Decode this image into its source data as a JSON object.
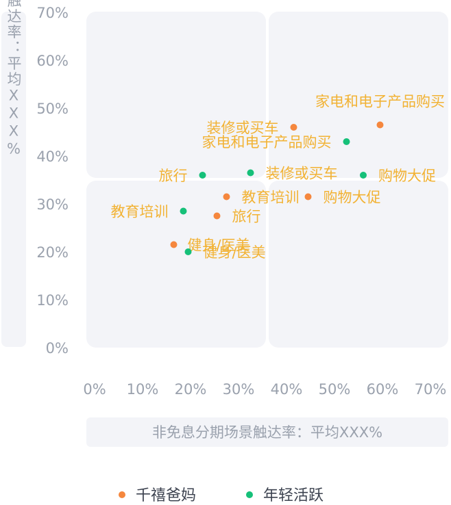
{
  "chart_data": {
    "type": "scatter",
    "xlabel": "非免息分期场景触达率：平均XXX%",
    "ylabel": "非免息借贷场景触达率：平均XXX%",
    "xlim": [
      0,
      70
    ],
    "ylim": [
      0,
      70
    ],
    "x_ticks": [
      "0%",
      "10%",
      "20%",
      "30%",
      "40%",
      "50%",
      "60%",
      "70%"
    ],
    "y_ticks": [
      "0%",
      "10%",
      "20%",
      "30%",
      "40%",
      "50%",
      "60%",
      "70%"
    ],
    "legend_position": "bottom",
    "series": [
      {
        "name": "千禧爸妈",
        "color": "#f5873e",
        "points": [
          {
            "label": "家电和电子产品购买",
            "x": 59.5,
            "y": 46.5
          },
          {
            "label": "装修或买车",
            "x": 41.5,
            "y": 46.0
          },
          {
            "label": "教育培训",
            "x": 27.5,
            "y": 31.5
          },
          {
            "label": "购物大促",
            "x": 44.5,
            "y": 31.5
          },
          {
            "label": "旅行",
            "x": 25.5,
            "y": 27.5
          },
          {
            "label": "健身/医美",
            "x": 16.5,
            "y": 21.5
          }
        ]
      },
      {
        "name": "年轻活跃",
        "color": "#16c079",
        "points": [
          {
            "label": "家电和电子产品购买",
            "x": 52.5,
            "y": 43.0
          },
          {
            "label": "旅行",
            "x": 22.5,
            "y": 36.0
          },
          {
            "label": "装修或买车",
            "x": 32.5,
            "y": 36.5
          },
          {
            "label": "购物大促",
            "x": 56.0,
            "y": 36.0
          },
          {
            "label": "教育培训",
            "x": 18.5,
            "y": 28.5
          },
          {
            "label": "健身/医美",
            "x": 19.5,
            "y": 20.0
          }
        ]
      }
    ]
  }
}
